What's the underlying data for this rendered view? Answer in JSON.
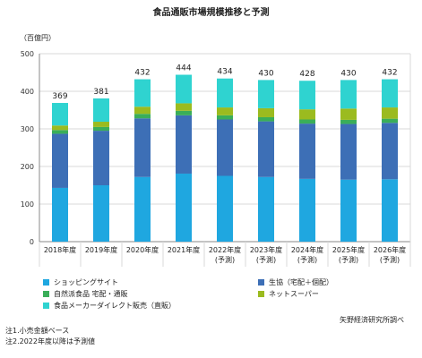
{
  "title": "食品通販市場規模推移と予測",
  "unit": "（百億円）",
  "source": "矢野経済研究所調べ",
  "notes": [
    "注1.小売金額ベース",
    "注2.2022年度以降は予測値"
  ],
  "colors": {
    "shopping_site": "#1fa7e0",
    "coop": "#3d6fb6",
    "natural": "#3aae59",
    "net_super": "#9bbb1f",
    "direct": "#2fd3d0"
  },
  "chart_data": {
    "type": "bar",
    "stacked": true,
    "title": "食品通販市場規模推移と予測",
    "ylabel": "（百億円）",
    "ylim": [
      0,
      500
    ],
    "yticks": [
      0,
      100,
      200,
      300,
      400,
      500
    ],
    "grid": true,
    "legend_position": "bottom",
    "categories": [
      "2018年度",
      "2019年度",
      "2020年度",
      "2021年度",
      "2022年度",
      "2023年度",
      "2024年度",
      "2025年度",
      "2026年度"
    ],
    "category_sublabels": [
      "",
      "",
      "",
      "",
      "(予測)",
      "(予測)",
      "(予測)",
      "(予測)",
      "(予測)"
    ],
    "totals": [
      369,
      381,
      432,
      444,
      434,
      430,
      428,
      430,
      432
    ],
    "series": [
      {
        "name": "ショッピングサイト",
        "color_key": "shopping_site",
        "values": [
          143,
          150,
          172,
          181,
          175,
          172,
          167,
          165,
          166
        ]
      },
      {
        "name": "生協（宅配＋個配）",
        "color_key": "coop",
        "values": [
          144,
          145,
          156,
          155,
          150,
          148,
          147,
          148,
          150
        ]
      },
      {
        "name": "自然派食品 宅配・通販",
        "color_key": "natural",
        "values": [
          10,
          10,
          12,
          12,
          11,
          11,
          11,
          11,
          11
        ]
      },
      {
        "name": "ネットスーパー",
        "color_key": "net_super",
        "values": [
          12,
          14,
          19,
          20,
          21,
          24,
          27,
          30,
          30
        ]
      },
      {
        "name": "食品メーカーダイレクト販売（直販）",
        "color_key": "direct",
        "values": [
          60,
          62,
          73,
          76,
          77,
          75,
          76,
          76,
          75
        ]
      }
    ]
  }
}
